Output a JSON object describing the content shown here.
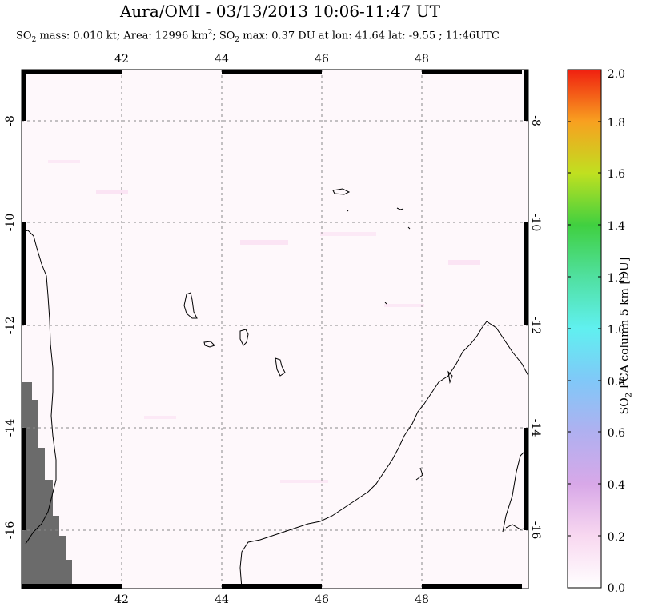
{
  "header": {
    "title": "Aura/OMI - 03/13/2013 10:06-11:47 UT",
    "so2_mass_label": "SO",
    "so2_mass_text": " mass: 0.010 kt; Area: 12996 km",
    "area_sup": "2",
    "so2_max_label": "; SO",
    "so2_max_text": " max: 0.37 DU at lon: 41.64 lat: -9.55 ; 11:46UTC",
    "sub2": "2"
  },
  "map": {
    "lon_ticks": [
      "42",
      "44",
      "46",
      "48"
    ],
    "lat_ticks": [
      "-8",
      "-10",
      "-12",
      "-14",
      "-16"
    ],
    "lon_range": [
      40.0,
      50.0
    ],
    "lat_range": [
      -17.0,
      -7.0
    ],
    "background_color": "#fef7fb",
    "land_nodata_color": "#6b6b6b",
    "grid": true
  },
  "colorbar": {
    "ticks": [
      "2.0",
      "1.8",
      "1.6",
      "1.4",
      "1.2",
      "1.0",
      "0.8",
      "0.6",
      "0.4",
      "0.2",
      "0.0"
    ],
    "label_prefix": "SO",
    "label_sub": "2",
    "label_suffix": " PCA column 5 km [DU]",
    "range": [
      0.0,
      2.0
    ]
  }
}
